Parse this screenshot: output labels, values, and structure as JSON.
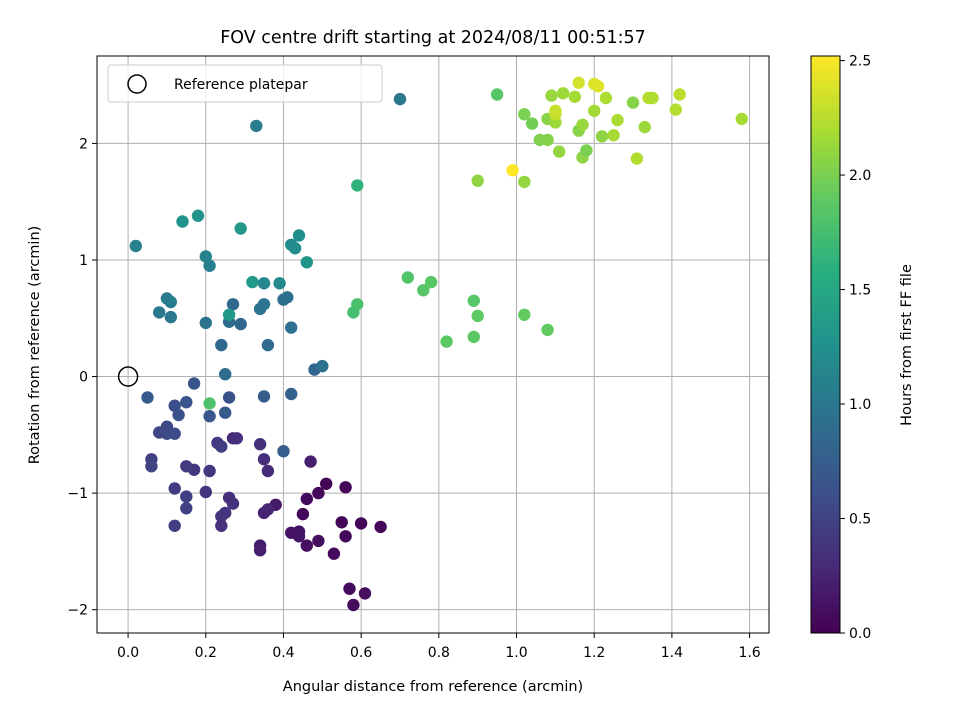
{
  "chart_data": {
    "type": "scatter",
    "title": "FOV centre drift starting at 2024/08/11 00:51:57",
    "xlabel": "Angular distance from reference (arcmin)",
    "ylabel": "Rotation from reference (arcmin)",
    "xlim": [
      -0.08,
      1.65
    ],
    "ylim": [
      -2.2,
      2.75
    ],
    "xticks": [
      0.0,
      0.2,
      0.4,
      0.6,
      0.8,
      1.0,
      1.2,
      1.4,
      1.6
    ],
    "xtick_labels": [
      "0.0",
      "0.2",
      "0.4",
      "0.6",
      "0.8",
      "1.0",
      "1.2",
      "1.4",
      "1.6"
    ],
    "yticks": [
      -2,
      -1,
      0,
      1,
      2
    ],
    "ytick_labels": [
      "−2",
      "−1",
      "0",
      "1",
      "2"
    ],
    "grid": true,
    "legend": {
      "placement": "top-left",
      "entries": [
        {
          "label": "Reference platepar",
          "marker": "open-circle"
        }
      ],
      "reference_point": [
        0,
        0
      ]
    },
    "colorbar": {
      "label": "Hours from first FF file",
      "colormap": "viridis",
      "range": [
        0.0,
        2.52
      ],
      "ticks": [
        0.0,
        0.5,
        1.0,
        1.5,
        2.0,
        2.5
      ],
      "tick_labels": [
        "0.0",
        "0.5",
        "1.0",
        "1.5",
        "2.0",
        "2.5"
      ]
    },
    "points_columns": [
      "x_arcmin",
      "y_arcmin",
      "hours"
    ],
    "points": [
      [
        0.51,
        -0.92,
        0.02
      ],
      [
        0.56,
        -0.95,
        0.03
      ],
      [
        0.49,
        -1.0,
        0.04
      ],
      [
        0.46,
        -1.05,
        0.05
      ],
      [
        0.45,
        -1.18,
        0.06
      ],
      [
        0.55,
        -1.25,
        0.02
      ],
      [
        0.6,
        -1.26,
        0.03
      ],
      [
        0.65,
        -1.29,
        0.04
      ],
      [
        0.56,
        -1.37,
        0.05
      ],
      [
        0.53,
        -1.52,
        0.06
      ],
      [
        0.57,
        -1.82,
        0.07
      ],
      [
        0.58,
        -1.96,
        0.08
      ],
      [
        0.61,
        -1.86,
        0.09
      ],
      [
        0.49,
        -1.41,
        0.1
      ],
      [
        0.46,
        -1.45,
        0.11
      ],
      [
        0.44,
        -1.33,
        0.12
      ],
      [
        0.42,
        -1.34,
        0.13
      ],
      [
        0.44,
        -1.37,
        0.14
      ],
      [
        0.47,
        -0.73,
        0.22
      ],
      [
        0.38,
        -1.1,
        0.18
      ],
      [
        0.34,
        -1.45,
        0.2
      ],
      [
        0.34,
        -1.49,
        0.21
      ],
      [
        0.35,
        -1.17,
        0.25
      ],
      [
        0.36,
        -1.14,
        0.27
      ],
      [
        0.36,
        -0.81,
        0.3
      ],
      [
        0.35,
        -0.71,
        0.32
      ],
      [
        0.34,
        -0.58,
        0.35
      ],
      [
        0.27,
        -0.53,
        0.3
      ],
      [
        0.28,
        -0.53,
        0.33
      ],
      [
        0.26,
        -1.04,
        0.34
      ],
      [
        0.27,
        -1.09,
        0.36
      ],
      [
        0.25,
        -1.17,
        0.37
      ],
      [
        0.24,
        -1.2,
        0.38
      ],
      [
        0.24,
        -1.28,
        0.35
      ],
      [
        0.2,
        -0.99,
        0.38
      ],
      [
        0.21,
        -0.81,
        0.4
      ],
      [
        0.23,
        -0.57,
        0.42
      ],
      [
        0.24,
        -0.6,
        0.44
      ],
      [
        0.17,
        -0.8,
        0.41
      ],
      [
        0.15,
        -0.77,
        0.43
      ],
      [
        0.12,
        -0.96,
        0.45
      ],
      [
        0.15,
        -1.03,
        0.47
      ],
      [
        0.15,
        -1.13,
        0.49
      ],
      [
        0.12,
        -1.28,
        0.46
      ],
      [
        0.06,
        -0.71,
        0.48
      ],
      [
        0.06,
        -0.77,
        0.5
      ],
      [
        0.08,
        -0.48,
        0.52
      ],
      [
        0.1,
        -0.43,
        0.54
      ],
      [
        0.1,
        -0.49,
        0.56
      ],
      [
        0.12,
        -0.49,
        0.58
      ],
      [
        0.12,
        -0.25,
        0.6
      ],
      [
        0.13,
        -0.33,
        0.62
      ],
      [
        0.15,
        -0.22,
        0.64
      ],
      [
        0.17,
        -0.06,
        0.66
      ],
      [
        0.21,
        -0.34,
        0.68
      ],
      [
        0.25,
        -0.31,
        0.7
      ],
      [
        0.26,
        -0.18,
        0.62
      ],
      [
        0.35,
        -0.17,
        0.72
      ],
      [
        0.4,
        -0.64,
        0.74
      ],
      [
        0.42,
        -0.15,
        0.8
      ],
      [
        0.05,
        -0.18,
        0.72
      ],
      [
        0.48,
        0.06,
        0.82
      ],
      [
        0.5,
        0.09,
        0.95
      ],
      [
        0.24,
        0.27,
        0.86
      ],
      [
        0.25,
        0.02,
        0.9
      ],
      [
        0.29,
        0.45,
        0.84
      ],
      [
        0.26,
        0.47,
        0.88
      ],
      [
        0.27,
        0.62,
        0.85
      ],
      [
        0.36,
        0.27,
        0.87
      ],
      [
        0.42,
        0.42,
        0.92
      ],
      [
        0.4,
        0.66,
        0.89
      ],
      [
        0.41,
        0.68,
        0.93
      ],
      [
        0.34,
        0.58,
        0.96
      ],
      [
        0.35,
        0.62,
        0.98
      ],
      [
        0.2,
        0.46,
        0.95
      ],
      [
        0.11,
        0.51,
        1.0
      ],
      [
        0.08,
        0.55,
        1.02
      ],
      [
        0.1,
        0.67,
        1.04
      ],
      [
        0.11,
        0.64,
        1.06
      ],
      [
        0.33,
        2.15,
        1.05
      ],
      [
        0.7,
        2.38,
        1.0
      ],
      [
        0.02,
        1.12,
        1.1
      ],
      [
        0.21,
        0.95,
        1.08
      ],
      [
        0.2,
        1.03,
        1.12
      ],
      [
        0.35,
        0.8,
        1.15
      ],
      [
        0.39,
        0.8,
        1.18
      ],
      [
        0.42,
        1.13,
        1.2
      ],
      [
        0.43,
        1.1,
        1.22
      ],
      [
        0.44,
        1.21,
        1.25
      ],
      [
        0.46,
        0.98,
        1.3
      ],
      [
        0.14,
        1.33,
        1.27
      ],
      [
        0.18,
        1.38,
        1.29
      ],
      [
        0.29,
        1.27,
        1.32
      ],
      [
        0.32,
        0.81,
        1.35
      ],
      [
        0.26,
        0.53,
        1.36
      ],
      [
        0.58,
        0.55,
        1.75
      ],
      [
        0.59,
        0.62,
        1.78
      ],
      [
        0.59,
        1.64,
        1.62
      ],
      [
        0.21,
        -0.23,
        1.8
      ],
      [
        0.72,
        0.85,
        1.82
      ],
      [
        0.76,
        0.74,
        1.84
      ],
      [
        0.78,
        0.81,
        1.86
      ],
      [
        0.82,
        0.3,
        1.88
      ],
      [
        0.89,
        0.65,
        1.85
      ],
      [
        0.89,
        0.34,
        1.87
      ],
      [
        0.9,
        0.52,
        1.89
      ],
      [
        1.02,
        0.53,
        1.9
      ],
      [
        1.08,
        0.4,
        1.91
      ],
      [
        0.95,
        2.42,
        1.84
      ],
      [
        0.9,
        1.68,
        2.08
      ],
      [
        1.02,
        1.67,
        2.1
      ],
      [
        1.02,
        2.25,
        2.0
      ],
      [
        1.04,
        2.17,
        1.98
      ],
      [
        1.06,
        2.03,
        2.02
      ],
      [
        1.08,
        2.03,
        2.04
      ],
      [
        1.08,
        2.21,
        2.06
      ],
      [
        1.09,
        2.41,
        2.12
      ],
      [
        1.1,
        2.18,
        2.14
      ],
      [
        1.1,
        2.25,
        2.3
      ],
      [
        1.1,
        2.28,
        2.32
      ],
      [
        1.11,
        1.93,
        2.1
      ],
      [
        1.12,
        2.43,
        2.15
      ],
      [
        1.15,
        2.4,
        2.17
      ],
      [
        1.16,
        2.11,
        2.05
      ],
      [
        1.16,
        2.52,
        2.35
      ],
      [
        1.17,
        2.16,
        2.12
      ],
      [
        1.17,
        1.88,
        2.08
      ],
      [
        1.18,
        1.94,
        2.0
      ],
      [
        1.2,
        2.51,
        2.38
      ],
      [
        1.21,
        2.49,
        2.4
      ],
      [
        1.2,
        2.28,
        2.16
      ],
      [
        1.22,
        2.06,
        2.08
      ],
      [
        1.23,
        2.39,
        2.2
      ],
      [
        1.25,
        2.07,
        2.18
      ],
      [
        1.26,
        2.2,
        2.19
      ],
      [
        1.3,
        2.35,
        2.05
      ],
      [
        1.31,
        1.87,
        2.22
      ],
      [
        1.33,
        2.14,
        2.14
      ],
      [
        1.34,
        2.39,
        2.24
      ],
      [
        1.35,
        2.39,
        2.21
      ],
      [
        1.41,
        2.29,
        2.23
      ],
      [
        1.42,
        2.42,
        2.26
      ],
      [
        1.58,
        2.21,
        2.18
      ],
      [
        0.99,
        1.77,
        2.52
      ]
    ]
  }
}
